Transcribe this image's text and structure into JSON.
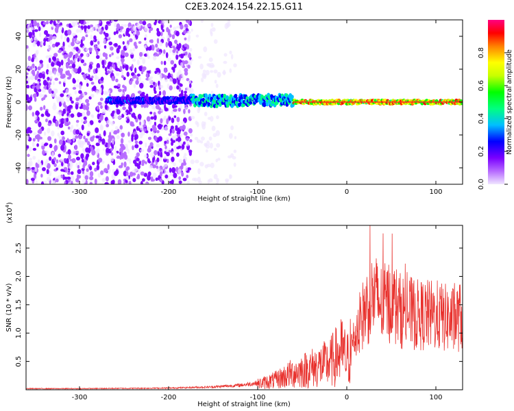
{
  "title": "C2E3.2024.154.22.15.G11",
  "colors": {
    "snr_line": "#e8302c",
    "spectrogram_purple": "#7a00e6",
    "colorbar": [
      "#f0e6ff",
      "#b66aff",
      "#7a00ff",
      "#0000ff",
      "#00bfff",
      "#00ff80",
      "#00ff00",
      "#c8ff00",
      "#ffff00",
      "#ff8000",
      "#ff0000",
      "#ff0080"
    ]
  },
  "chart_data": [
    {
      "type": "heatmap",
      "title": "C2E3.2024.154.22.15.G11",
      "xlabel": "Height of straight line (km)",
      "ylabel": "Frequency (Hz)",
      "xlim": [
        -360,
        130
      ],
      "ylim": [
        -50,
        50
      ],
      "x_ticks": [
        -300,
        -200,
        -100,
        0,
        100
      ],
      "y_ticks": [
        -40,
        -20,
        0,
        20,
        40
      ],
      "colorbar": {
        "label": "Normalized spectral amplitude",
        "range": [
          0,
          1
        ],
        "ticks": [
          0.0,
          0.2,
          0.4,
          0.6,
          0.8
        ]
      },
      "features": [
        {
          "description": "noise",
          "x_range": [
            -360,
            -175
          ],
          "y_range": [
            -50,
            50
          ],
          "amplitude": 0.2
        },
        {
          "description": "weak noise",
          "x_range": [
            -175,
            -125
          ],
          "y_range": [
            -50,
            50
          ],
          "amplitude": 0.05
        },
        {
          "description": "signal",
          "x_range": [
            -270,
            -175
          ],
          "y_center": 1,
          "amplitude": 0.35
        },
        {
          "description": "signal",
          "x_range": [
            -175,
            -60
          ],
          "y_center": 1,
          "amplitude": 0.5
        },
        {
          "description": "signal",
          "x_range": [
            -60,
            130
          ],
          "y_center": 0,
          "amplitude": 0.95
        }
      ]
    },
    {
      "type": "line",
      "xlabel": "Height of straight line (km)",
      "ylabel": "SNR (10 * v/v)",
      "y_scale_label": "(x10",
      "y_scale_exp": "4",
      "y_scale_close": ")",
      "xlim": [
        -360,
        130
      ],
      "ylim": [
        0,
        2.9
      ],
      "x_ticks": [
        -300,
        -200,
        -100,
        0,
        100
      ],
      "y_ticks": [
        0.5,
        1.0,
        1.5,
        2.0,
        2.5
      ],
      "series": [
        {
          "x": [
            -360,
            -300,
            -200,
            -150,
            -120,
            -100,
            -80,
            -60,
            -40,
            -20,
            -5,
            0,
            10,
            20,
            30,
            40,
            50,
            60,
            80,
            100,
            120,
            130
          ],
          "y": [
            0.02,
            0.02,
            0.03,
            0.05,
            0.08,
            0.12,
            0.2,
            0.35,
            0.45,
            0.55,
            0.8,
            0.6,
            1.1,
            1.6,
            1.9,
            1.7,
            1.8,
            1.6,
            1.5,
            1.5,
            1.4,
            1.5
          ]
        }
      ]
    }
  ]
}
